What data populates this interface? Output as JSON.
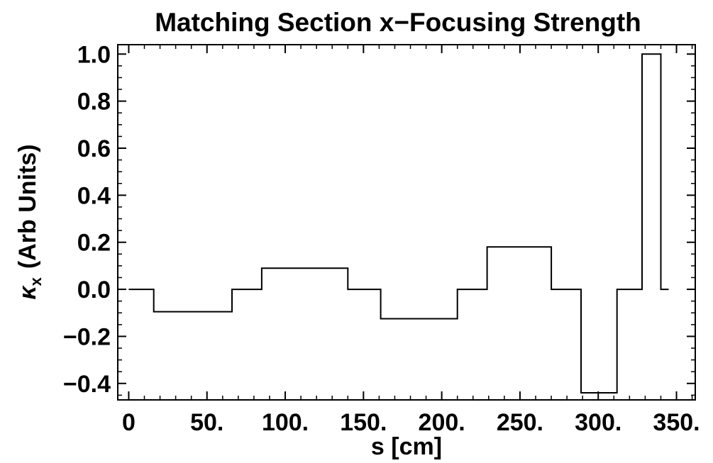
{
  "chart_data": {
    "type": "line",
    "title": "Matching Section  x−Focusing Strength",
    "xlabel": "s [cm]",
    "ylabel": "(Arb Units)",
    "ylabel_symbol": "κ",
    "ylabel_subscript": "x",
    "xlim": [
      -7,
      362
    ],
    "ylim": [
      -0.47,
      1.04
    ],
    "grid": false,
    "x_ticks": [
      {
        "value": 0,
        "label": "0"
      },
      {
        "value": 50,
        "label": "50."
      },
      {
        "value": 100,
        "label": "100."
      },
      {
        "value": 150,
        "label": "150."
      },
      {
        "value": 200,
        "label": "200."
      },
      {
        "value": 250,
        "label": "250."
      },
      {
        "value": 300,
        "label": "300."
      },
      {
        "value": 350,
        "label": "350."
      }
    ],
    "y_ticks": [
      {
        "value": 1.0,
        "label": "1.0"
      },
      {
        "value": 0.8,
        "label": "0.8"
      },
      {
        "value": 0.6,
        "label": "0.6"
      },
      {
        "value": 0.4,
        "label": "0.4"
      },
      {
        "value": 0.2,
        "label": "0.2"
      },
      {
        "value": 0.0,
        "label": "0.0"
      },
      {
        "value": -0.2,
        "label": "−0.2"
      },
      {
        "value": -0.4,
        "label": "−0.4"
      }
    ],
    "series": [
      {
        "color": "#000000",
        "x": [
          0,
          16,
          16,
          66,
          66,
          85,
          85,
          140,
          140,
          161,
          161,
          210,
          210,
          229,
          229,
          270,
          270,
          289,
          289,
          312,
          312,
          328,
          328,
          340,
          340,
          345
        ],
        "y": [
          0,
          0,
          -0.095,
          -0.095,
          0,
          0,
          0.09,
          0.09,
          0,
          0,
          -0.125,
          -0.125,
          0,
          0,
          0.18,
          0.18,
          0,
          0,
          -0.44,
          -0.44,
          0,
          0,
          1.0,
          1.0,
          0,
          0
        ]
      }
    ]
  }
}
